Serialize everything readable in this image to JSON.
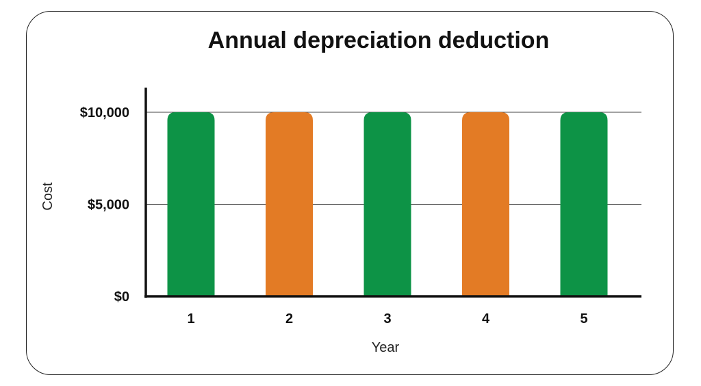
{
  "chart_data": {
    "type": "bar",
    "title": "Annual depreciation deduction",
    "xlabel": "Year",
    "ylabel": "Cost",
    "categories": [
      "1",
      "2",
      "3",
      "4",
      "5"
    ],
    "values": [
      10000,
      10000,
      10000,
      10000,
      10000
    ],
    "bar_colors": [
      "#0d9346",
      "#e37b25",
      "#0d9346",
      "#e37b25",
      "#0d9346"
    ],
    "ylim": [
      0,
      11300
    ],
    "yticks": [
      {
        "value": 0,
        "label": "$0"
      },
      {
        "value": 5000,
        "label": "$5,000"
      },
      {
        "value": 10000,
        "label": "$10,000"
      }
    ],
    "grid": true
  }
}
